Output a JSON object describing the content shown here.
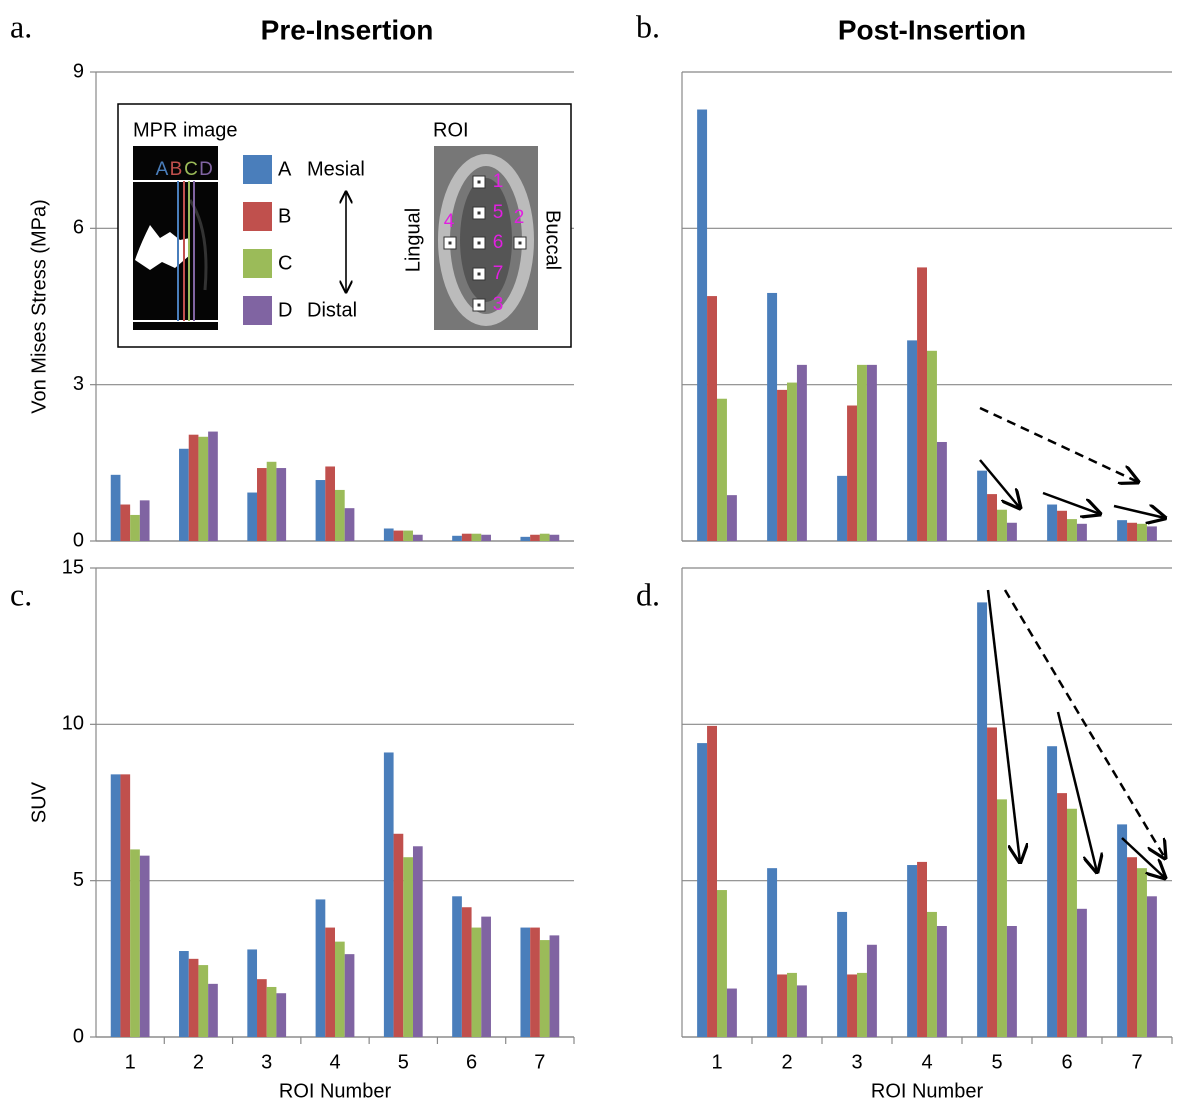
{
  "chart_data": [
    {
      "type": "bar",
      "panel_label": "a.",
      "title": "Pre-Insertion",
      "ylabel": "Von Mises Stress (MPa)",
      "categories": [
        null,
        null,
        null,
        null,
        null,
        null,
        null
      ],
      "series": [
        {
          "name": "A",
          "color": "#4a7ebb",
          "values": [
            1.27,
            1.77,
            0.93,
            1.17,
            0.24,
            0.1,
            0.08
          ]
        },
        {
          "name": "B",
          "color": "#c0504d",
          "values": [
            0.7,
            2.04,
            1.4,
            1.43,
            0.2,
            0.14,
            0.12
          ]
        },
        {
          "name": "C",
          "color": "#9bbb59",
          "values": [
            0.5,
            2.0,
            1.52,
            0.98,
            0.2,
            0.14,
            0.14
          ]
        },
        {
          "name": "D",
          "color": "#8064a2",
          "values": [
            0.78,
            2.1,
            1.4,
            0.63,
            0.12,
            0.12,
            0.12
          ]
        }
      ],
      "ylim": [
        0,
        9
      ],
      "yticks": [
        0,
        3,
        6,
        9
      ],
      "ytick_labels": true,
      "grid": true
    },
    {
      "type": "bar",
      "panel_label": "b.",
      "title": "Post-Insertion",
      "categories": [
        null,
        null,
        null,
        null,
        null,
        null,
        null
      ],
      "series": [
        {
          "name": "A",
          "color": "#4a7ebb",
          "values": [
            8.28,
            4.76,
            1.25,
            3.85,
            1.35,
            0.7,
            0.4
          ]
        },
        {
          "name": "B",
          "color": "#c0504d",
          "values": [
            4.7,
            2.9,
            2.6,
            5.25,
            0.9,
            0.58,
            0.35
          ]
        },
        {
          "name": "C",
          "color": "#9bbb59",
          "values": [
            2.73,
            3.04,
            3.38,
            3.65,
            0.6,
            0.42,
            0.33
          ]
        },
        {
          "name": "D",
          "color": "#8064a2",
          "values": [
            0.88,
            3.38,
            3.38,
            1.9,
            0.35,
            0.33,
            0.28
          ]
        }
      ],
      "ylim": [
        0,
        9
      ],
      "yticks": [
        0,
        3,
        6,
        9
      ],
      "ytick_labels": false,
      "grid": true
    },
    {
      "type": "bar",
      "panel_label": "c.",
      "ylabel": "SUV",
      "xlabel": "ROI Number",
      "categories": [
        "1",
        "2",
        "3",
        "4",
        "5",
        "6",
        "7"
      ],
      "series": [
        {
          "name": "A",
          "color": "#4a7ebb",
          "values": [
            8.4,
            2.75,
            2.8,
            4.4,
            9.1,
            4.5,
            3.5
          ]
        },
        {
          "name": "B",
          "color": "#c0504d",
          "values": [
            8.4,
            2.5,
            1.85,
            3.5,
            6.5,
            4.15,
            3.5
          ]
        },
        {
          "name": "C",
          "color": "#9bbb59",
          "values": [
            6.0,
            2.3,
            1.6,
            3.05,
            5.75,
            3.5,
            3.1
          ]
        },
        {
          "name": "D",
          "color": "#8064a2",
          "values": [
            5.8,
            1.7,
            1.4,
            2.65,
            6.1,
            3.85,
            3.25
          ]
        }
      ],
      "ylim": [
        0,
        15
      ],
      "yticks": [
        0,
        5,
        10,
        15
      ],
      "ytick_labels": true,
      "grid": true
    },
    {
      "type": "bar",
      "panel_label": "d.",
      "xlabel": "ROI Number",
      "categories": [
        "1",
        "2",
        "3",
        "4",
        "5",
        "6",
        "7"
      ],
      "series": [
        {
          "name": "A",
          "color": "#4a7ebb",
          "values": [
            9.4,
            5.4,
            4.0,
            5.5,
            13.9,
            9.3,
            6.8
          ]
        },
        {
          "name": "B",
          "color": "#c0504d",
          "values": [
            9.95,
            2.0,
            2.0,
            5.6,
            9.9,
            7.8,
            5.75
          ]
        },
        {
          "name": "C",
          "color": "#9bbb59",
          "values": [
            4.7,
            2.05,
            2.05,
            4.0,
            7.6,
            7.3,
            5.4
          ]
        },
        {
          "name": "D",
          "color": "#8064a2",
          "values": [
            1.55,
            1.65,
            2.95,
            3.55,
            3.55,
            4.1,
            4.5
          ]
        }
      ],
      "ylim": [
        0,
        15
      ],
      "yticks": [
        0,
        5,
        10,
        15
      ],
      "ytick_labels": false,
      "grid": true
    }
  ],
  "inset": {
    "mpr_title": "MPR image",
    "mesial": "Mesial",
    "distal": "Distal",
    "roi_title": "ROI",
    "lingual": "Lingual",
    "buccal": "Buccal",
    "roi_labels": [
      "1",
      "5",
      "2",
      "4",
      "6",
      "7",
      "3"
    ]
  }
}
